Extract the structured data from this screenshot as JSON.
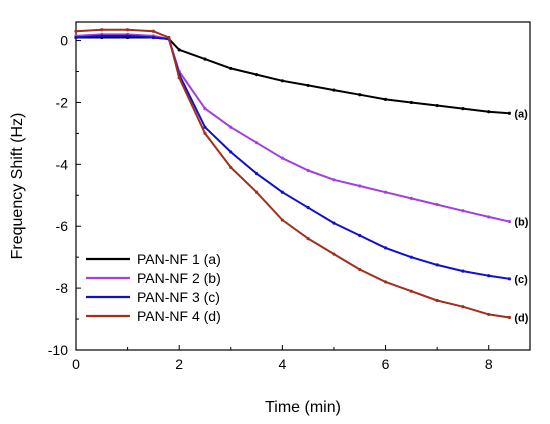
{
  "chart_data": {
    "type": "line",
    "title": "",
    "xlabel": "Time (min)",
    "ylabel": "Frequency Shift (Hz)",
    "xlim": [
      0,
      8.8
    ],
    "ylim": [
      -10,
      0.6
    ],
    "xticks": [
      0,
      2,
      4,
      6,
      8
    ],
    "yticks": [
      0,
      -2,
      -4,
      -6,
      -8,
      -10
    ],
    "grid": false,
    "legend_position": "bottom-left",
    "series": [
      {
        "name": "PAN-NF 1 (a)",
        "tag": "(a)",
        "color": "#000000",
        "x": [
          0,
          0.5,
          1.0,
          1.5,
          1.8,
          2.0,
          2.5,
          3.0,
          3.5,
          4.0,
          4.5,
          5.0,
          5.5,
          6.0,
          6.5,
          7.0,
          7.5,
          8.0,
          8.4
        ],
        "y": [
          0.1,
          0.1,
          0.1,
          0.1,
          0.05,
          -0.3,
          -0.6,
          -0.9,
          -1.1,
          -1.3,
          -1.45,
          -1.6,
          -1.75,
          -1.9,
          -2.0,
          -2.1,
          -2.2,
          -2.3,
          -2.35
        ]
      },
      {
        "name": "PAN-NF 2 (b)",
        "tag": "(b)",
        "color": "#a040e0",
        "x": [
          0,
          0.5,
          1.0,
          1.5,
          1.8,
          2.0,
          2.5,
          3.0,
          3.5,
          4.0,
          4.5,
          5.0,
          5.5,
          6.0,
          6.5,
          7.0,
          7.5,
          8.0,
          8.4
        ],
        "y": [
          0.15,
          0.2,
          0.2,
          0.15,
          0.05,
          -1.0,
          -2.2,
          -2.8,
          -3.3,
          -3.8,
          -4.2,
          -4.5,
          -4.7,
          -4.9,
          -5.1,
          -5.3,
          -5.5,
          -5.7,
          -5.85
        ]
      },
      {
        "name": "PAN-NF 3 (c)",
        "tag": "(c)",
        "color": "#1010cc",
        "x": [
          0,
          0.5,
          1.0,
          1.5,
          1.8,
          2.0,
          2.5,
          3.0,
          3.5,
          4.0,
          4.5,
          5.0,
          5.5,
          6.0,
          6.5,
          7.0,
          7.5,
          8.0,
          8.4
        ],
        "y": [
          0.1,
          0.15,
          0.15,
          0.1,
          0.05,
          -1.1,
          -2.8,
          -3.6,
          -4.3,
          -4.9,
          -5.4,
          -5.9,
          -6.3,
          -6.7,
          -7.0,
          -7.25,
          -7.45,
          -7.6,
          -7.7
        ]
      },
      {
        "name": "PAN-NF 4 (d)",
        "tag": "(d)",
        "color": "#a0301a",
        "x": [
          0,
          0.5,
          1.0,
          1.5,
          1.8,
          2.0,
          2.5,
          3.0,
          3.5,
          4.0,
          4.5,
          5.0,
          5.5,
          6.0,
          6.5,
          7.0,
          7.5,
          8.0,
          8.4
        ],
        "y": [
          0.3,
          0.35,
          0.35,
          0.3,
          0.1,
          -1.2,
          -3.0,
          -4.1,
          -4.9,
          -5.8,
          -6.4,
          -6.9,
          -7.4,
          -7.8,
          -8.1,
          -8.4,
          -8.6,
          -8.85,
          -8.95
        ]
      }
    ]
  }
}
